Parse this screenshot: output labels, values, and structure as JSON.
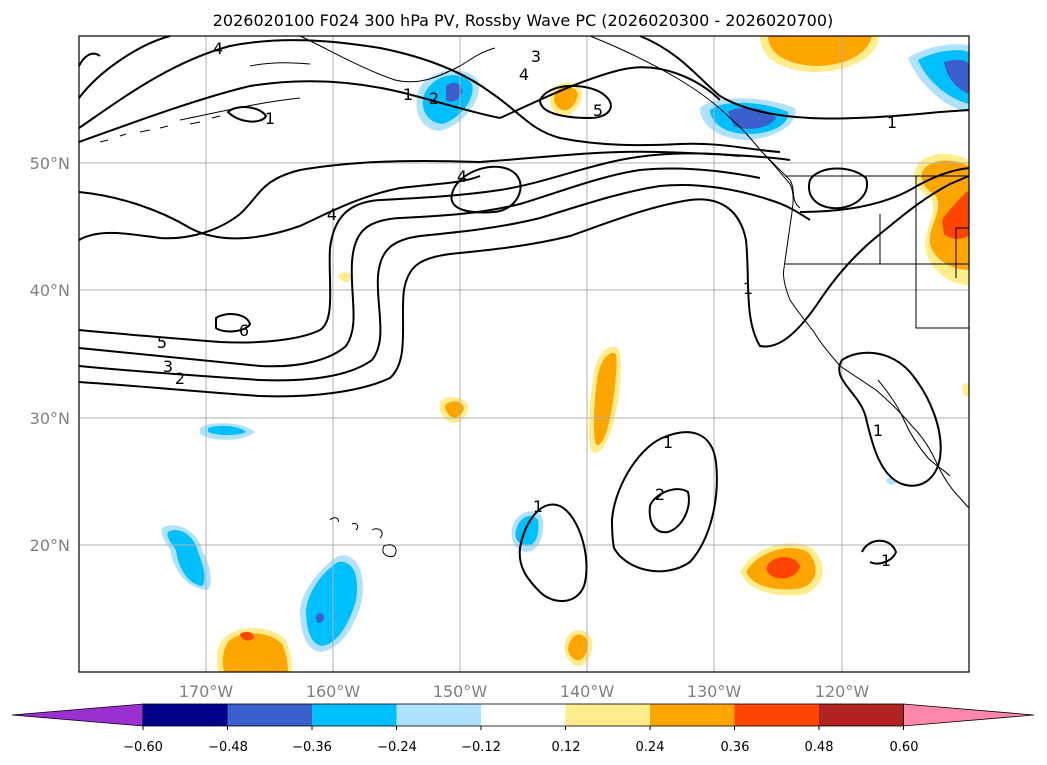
{
  "title": "2026020100 F024 300 hPa PV, Rossby Wave PC (2026020300 - 2026020700)",
  "lat_labels": [
    "50°N",
    "40°N",
    "30°N",
    "20°N"
  ],
  "lon_labels": [
    "170°W",
    "160°W",
    "150°W",
    "140°W",
    "130°W",
    "120°W"
  ],
  "colorbar": {
    "ticks": [
      "−0.60",
      "−0.48",
      "−0.36",
      "−0.24",
      "−0.12",
      "0.12",
      "0.24",
      "0.36",
      "0.48",
      "0.60"
    ],
    "colors": [
      "#9b30d0",
      "#00008b",
      "#3a5fcd",
      "#00bfff",
      "#b0e2ff",
      "#ffffff",
      "#ffec8b",
      "#ffa500",
      "#ff4500",
      "#b22222",
      "#ff88aa"
    ]
  },
  "contour_labels": [
    "4",
    "3",
    "4",
    "5",
    "1",
    "2",
    "1",
    "1",
    "4",
    "4",
    "5",
    "3",
    "2",
    "6",
    "1",
    "1",
    "2",
    "1",
    "1",
    "1"
  ],
  "colors": {
    "neg_dark": "#3a5fcd",
    "neg_mid": "#00bfff",
    "neg_light": "#b0e2ff",
    "pos_light": "#ffec8b",
    "pos_mid": "#ffa500",
    "pos_strong": "#ff4500",
    "grid": "#b0b0b0"
  }
}
